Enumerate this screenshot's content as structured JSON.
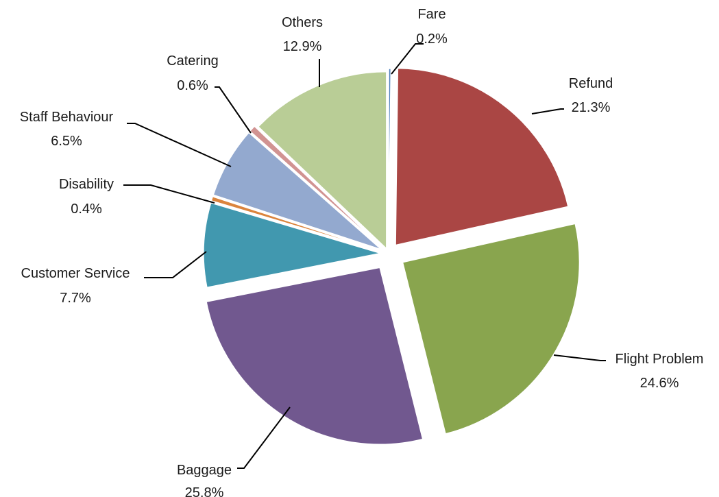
{
  "chart_data": {
    "type": "pie",
    "title": "",
    "start_angle_deg": 0,
    "direction": "clockwise",
    "exploded": true,
    "slices": [
      {
        "name": "Fare",
        "label": "Fare",
        "value": 0.2,
        "value_label": "0.2%",
        "color": "#4F81BD"
      },
      {
        "name": "Refund",
        "label": "Refund",
        "value": 21.3,
        "value_label": "21.3%",
        "color": "#AA4644"
      },
      {
        "name": "Flight Problem",
        "label": "Flight Problem",
        "value": 24.6,
        "value_label": "24.6%",
        "color": "#89A54E"
      },
      {
        "name": "Baggage",
        "label": "Baggage",
        "value": 25.8,
        "value_label": "25.8%",
        "color": "#71588F"
      },
      {
        "name": "Customer Service",
        "label": "Customer Service",
        "value": 7.7,
        "value_label": "7.7%",
        "color": "#4198AF"
      },
      {
        "name": "Disability",
        "label": "Disability",
        "value": 0.4,
        "value_label": "0.4%",
        "color": "#DB843D"
      },
      {
        "name": "Staff Behaviour",
        "label": "Staff Behaviour",
        "value": 6.5,
        "value_label": "6.5%",
        "color": "#93A9CF"
      },
      {
        "name": "Catering",
        "label": "Catering",
        "value": 0.6,
        "value_label": "0.6%",
        "color": "#D19392"
      },
      {
        "name": "Others",
        "label": "Others",
        "value": 12.9,
        "value_label": "12.9%",
        "color": "#B9CD96"
      }
    ]
  }
}
